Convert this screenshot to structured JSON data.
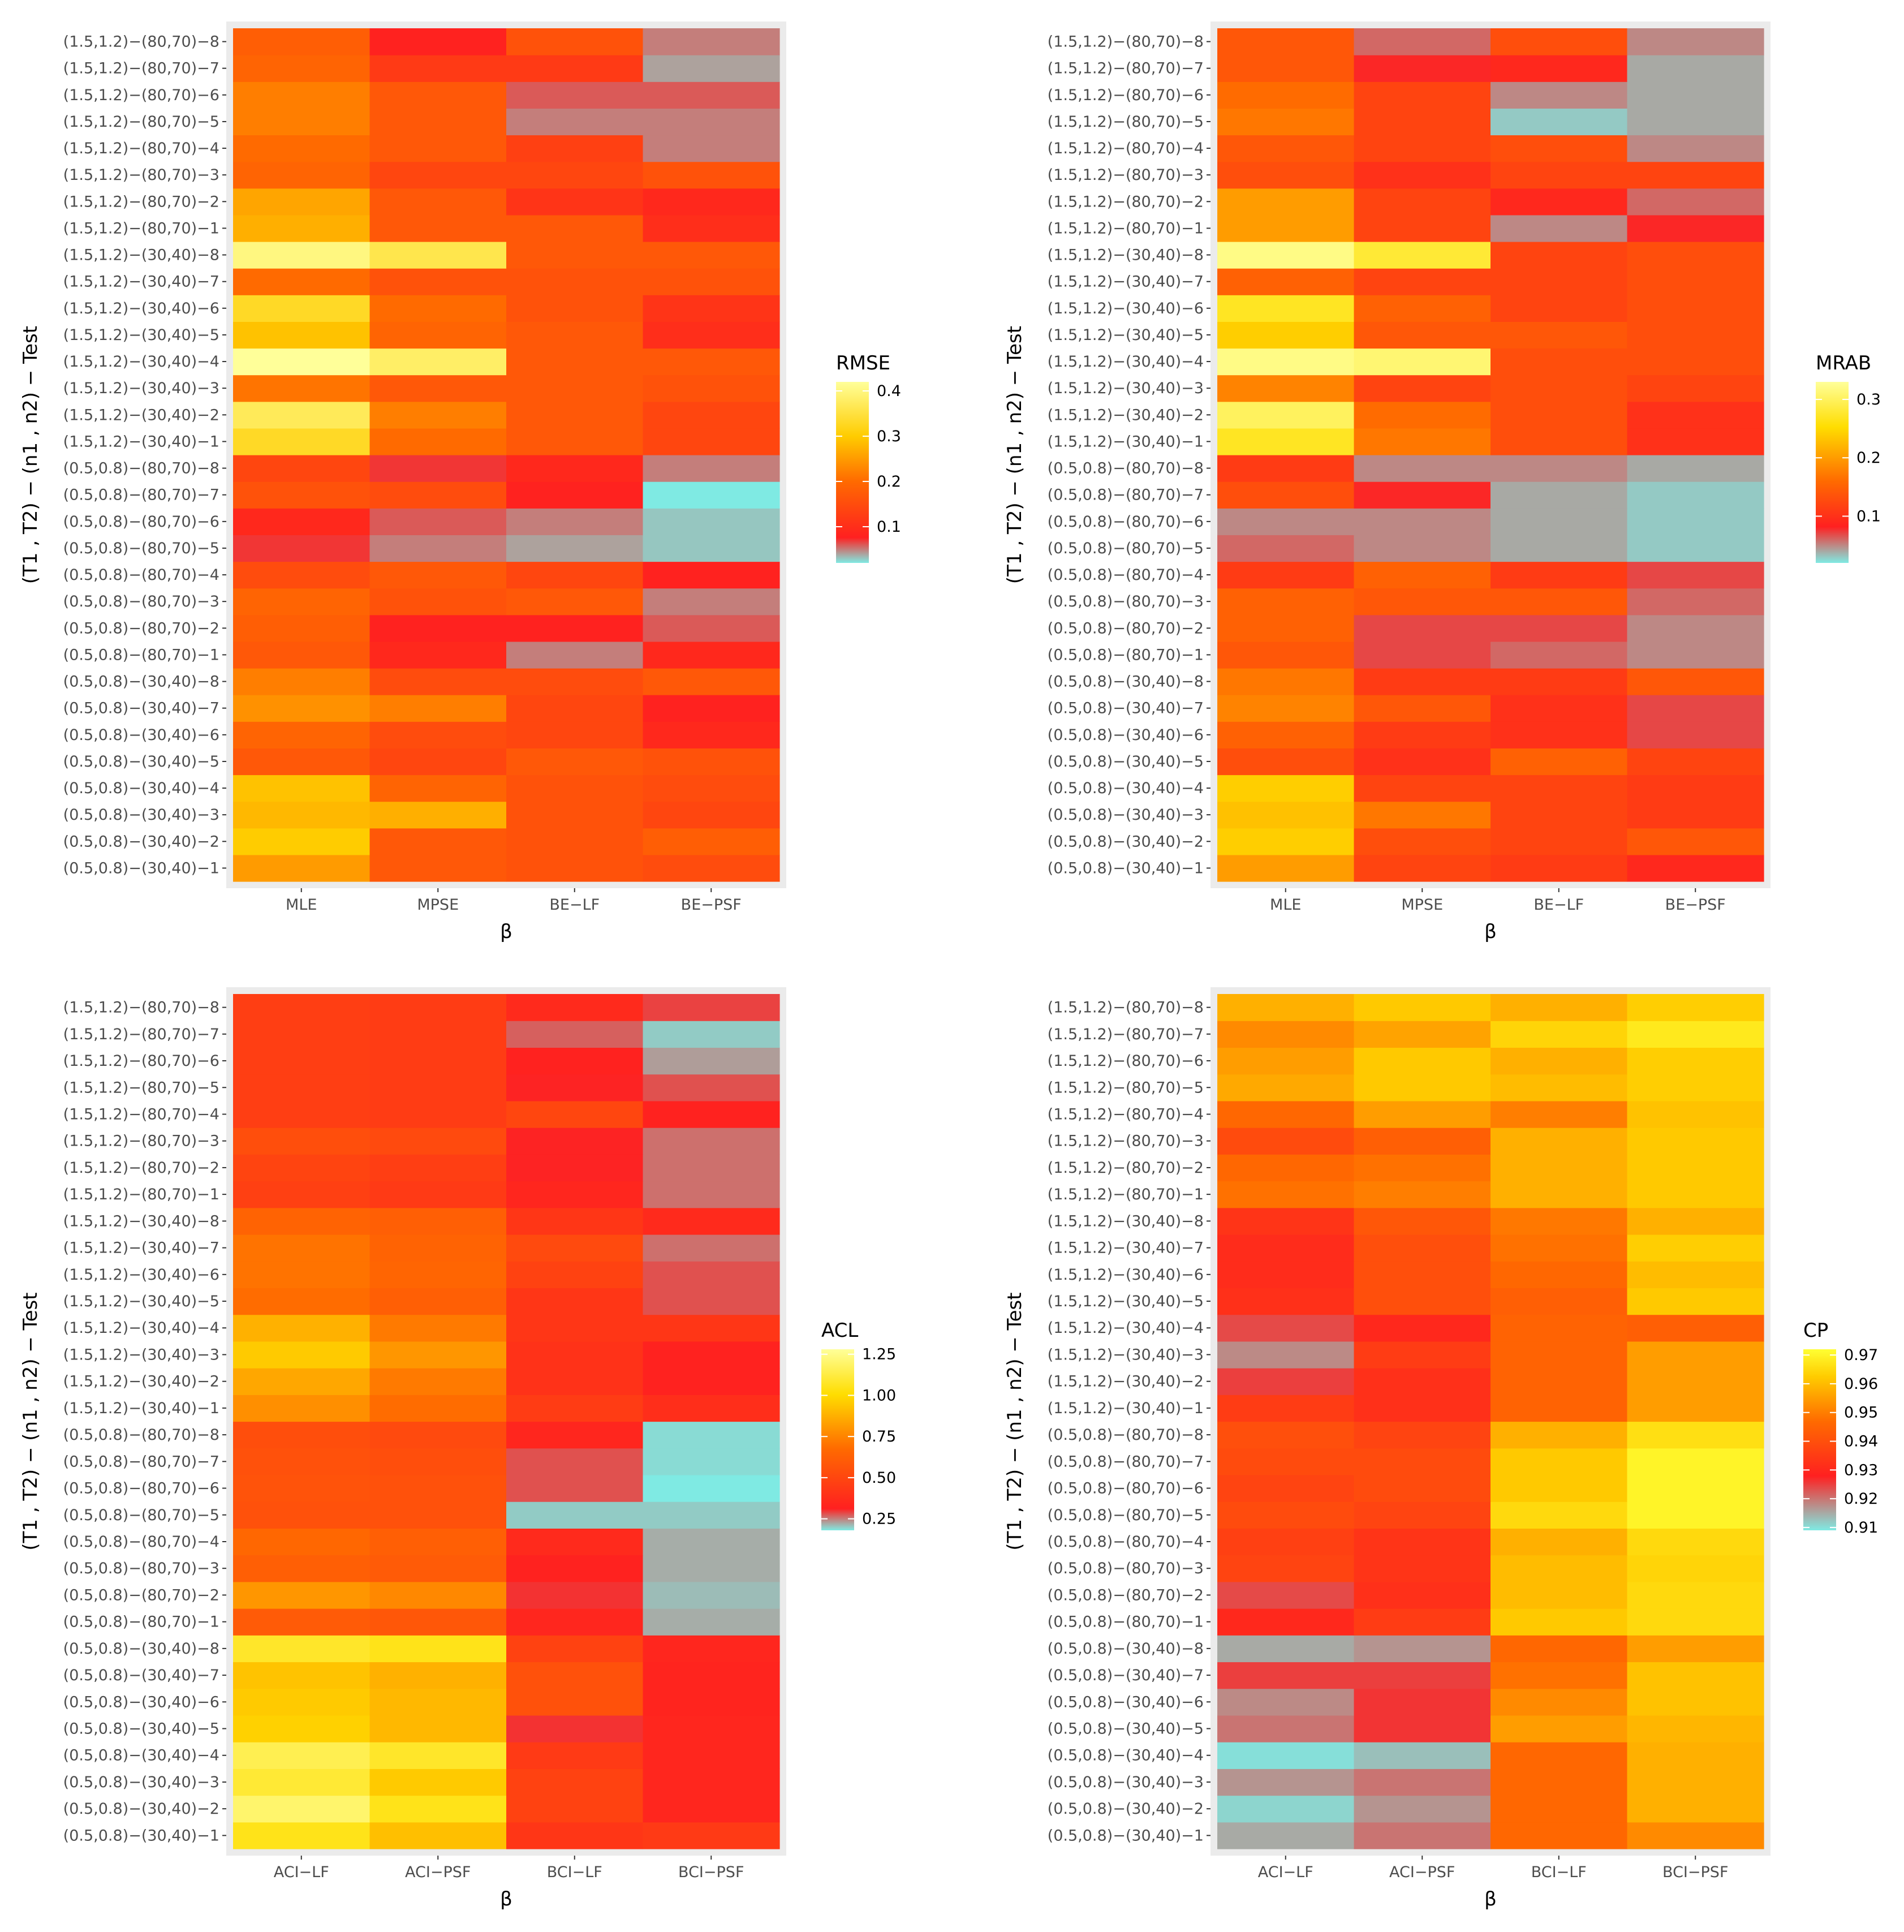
{
  "chart_data": [
    {
      "type": "heatmap",
      "xlabel": "β",
      "ylabel": "(T1 , T2) − (n1 , n2) − Test",
      "categories": [
        "MLE",
        "MPSE",
        "BE−LF",
        "BE−PSF"
      ],
      "rows": [
        "(0.5,0.8)−(30,40)−1",
        "(0.5,0.8)−(30,40)−2",
        "(0.5,0.8)−(30,40)−3",
        "(0.5,0.8)−(30,40)−4",
        "(0.5,0.8)−(30,40)−5",
        "(0.5,0.8)−(30,40)−6",
        "(0.5,0.8)−(30,40)−7",
        "(0.5,0.8)−(30,40)−8",
        "(0.5,0.8)−(80,70)−1",
        "(0.5,0.8)−(80,70)−2",
        "(0.5,0.8)−(80,70)−3",
        "(0.5,0.8)−(80,70)−4",
        "(0.5,0.8)−(80,70)−5",
        "(0.5,0.8)−(80,70)−6",
        "(0.5,0.8)−(80,70)−7",
        "(0.5,0.8)−(80,70)−8",
        "(1.5,1.2)−(30,40)−1",
        "(1.5,1.2)−(30,40)−2",
        "(1.5,1.2)−(30,40)−3",
        "(1.5,1.2)−(30,40)−4",
        "(1.5,1.2)−(30,40)−5",
        "(1.5,1.2)−(30,40)−6",
        "(1.5,1.2)−(30,40)−7",
        "(1.5,1.2)−(30,40)−8",
        "(1.5,1.2)−(80,70)−1",
        "(1.5,1.2)−(80,70)−2",
        "(1.5,1.2)−(80,70)−3",
        "(1.5,1.2)−(80,70)−4",
        "(1.5,1.2)−(80,70)−5",
        "(1.5,1.2)−(80,70)−6",
        "(1.5,1.2)−(80,70)−7",
        "(1.5,1.2)−(80,70)−8"
      ],
      "values": [
        [
          0.25,
          0.17,
          0.16,
          0.15
        ],
        [
          0.3,
          0.17,
          0.16,
          0.18
        ],
        [
          0.28,
          0.27,
          0.16,
          0.14
        ],
        [
          0.29,
          0.19,
          0.16,
          0.15
        ],
        [
          0.17,
          0.14,
          0.17,
          0.16
        ],
        [
          0.19,
          0.15,
          0.14,
          0.09
        ],
        [
          0.24,
          0.22,
          0.14,
          0.08
        ],
        [
          0.22,
          0.15,
          0.15,
          0.17
        ],
        [
          0.17,
          0.09,
          0.05,
          0.09
        ],
        [
          0.18,
          0.08,
          0.08,
          0.06
        ],
        [
          0.19,
          0.16,
          0.17,
          0.05
        ],
        [
          0.15,
          0.17,
          0.14,
          0.08
        ],
        [
          0.07,
          0.05,
          0.04,
          0.03
        ],
        [
          0.09,
          0.06,
          0.05,
          0.03
        ],
        [
          0.16,
          0.15,
          0.08,
          0.02
        ],
        [
          0.14,
          0.07,
          0.09,
          0.05
        ],
        [
          0.33,
          0.2,
          0.17,
          0.14
        ],
        [
          0.37,
          0.22,
          0.17,
          0.14
        ],
        [
          0.21,
          0.17,
          0.17,
          0.16
        ],
        [
          0.42,
          0.38,
          0.17,
          0.17
        ],
        [
          0.29,
          0.19,
          0.17,
          0.1
        ],
        [
          0.33,
          0.2,
          0.16,
          0.11
        ],
        [
          0.2,
          0.16,
          0.16,
          0.16
        ],
        [
          0.4,
          0.36,
          0.17,
          0.17
        ],
        [
          0.27,
          0.17,
          0.17,
          0.1
        ],
        [
          0.26,
          0.17,
          0.11,
          0.09
        ],
        [
          0.19,
          0.14,
          0.14,
          0.16
        ],
        [
          0.2,
          0.17,
          0.13,
          0.05
        ],
        [
          0.22,
          0.17,
          0.05,
          0.05
        ],
        [
          0.22,
          0.17,
          0.06,
          0.06
        ],
        [
          0.19,
          0.12,
          0.12,
          0.04
        ],
        [
          0.18,
          0.08,
          0.16,
          0.05
        ]
      ],
      "legend": {
        "title": "RMSE",
        "ticks": [
          0.1,
          0.2,
          0.3,
          0.4
        ],
        "min": 0.02,
        "max": 0.42,
        "palette": [
          [
            0.0,
            "#7feae3"
          ],
          [
            0.14,
            "#ff2020"
          ],
          [
            0.45,
            "#ff6a00"
          ],
          [
            0.7,
            "#ffcc00"
          ],
          [
            1.0,
            "#ffff99"
          ]
        ]
      }
    },
    {
      "type": "heatmap",
      "xlabel": "β",
      "ylabel": "(T1 , T2) − (n1 , n2) − Test",
      "categories": [
        "MLE",
        "MPSE",
        "BE−LF",
        "BE−PSF"
      ],
      "rows": [
        "(0.5,0.8)−(30,40)−1",
        "(0.5,0.8)−(30,40)−2",
        "(0.5,0.8)−(30,40)−3",
        "(0.5,0.8)−(30,40)−4",
        "(0.5,0.8)−(30,40)−5",
        "(0.5,0.8)−(30,40)−6",
        "(0.5,0.8)−(30,40)−7",
        "(0.5,0.8)−(30,40)−8",
        "(0.5,0.8)−(80,70)−1",
        "(0.5,0.8)−(80,70)−2",
        "(0.5,0.8)−(80,70)−3",
        "(0.5,0.8)−(80,70)−4",
        "(0.5,0.8)−(80,70)−5",
        "(0.5,0.8)−(80,70)−6",
        "(0.5,0.8)−(80,70)−7",
        "(0.5,0.8)−(80,70)−8",
        "(1.5,1.2)−(30,40)−1",
        "(1.5,1.2)−(30,40)−2",
        "(1.5,1.2)−(30,40)−3",
        "(1.5,1.2)−(30,40)−4",
        "(1.5,1.2)−(30,40)−5",
        "(1.5,1.2)−(30,40)−6",
        "(1.5,1.2)−(30,40)−7",
        "(1.5,1.2)−(30,40)−8",
        "(1.5,1.2)−(80,70)−1",
        "(1.5,1.2)−(80,70)−2",
        "(1.5,1.2)−(80,70)−3",
        "(1.5,1.2)−(80,70)−4",
        "(1.5,1.2)−(80,70)−5",
        "(1.5,1.2)−(80,70)−6",
        "(1.5,1.2)−(80,70)−7",
        "(1.5,1.2)−(80,70)−8"
      ],
      "values": [
        [
          0.2,
          0.12,
          0.11,
          0.09
        ],
        [
          0.24,
          0.13,
          0.12,
          0.14
        ],
        [
          0.23,
          0.17,
          0.12,
          0.11
        ],
        [
          0.24,
          0.12,
          0.12,
          0.11
        ],
        [
          0.13,
          0.1,
          0.15,
          0.12
        ],
        [
          0.15,
          0.11,
          0.1,
          0.07
        ],
        [
          0.18,
          0.14,
          0.1,
          0.07
        ],
        [
          0.17,
          0.11,
          0.11,
          0.14
        ],
        [
          0.14,
          0.07,
          0.06,
          0.05
        ],
        [
          0.15,
          0.07,
          0.07,
          0.05
        ],
        [
          0.15,
          0.14,
          0.14,
          0.06
        ],
        [
          0.11,
          0.15,
          0.11,
          0.07
        ],
        [
          0.06,
          0.05,
          0.04,
          0.03
        ],
        [
          0.05,
          0.05,
          0.04,
          0.03
        ],
        [
          0.13,
          0.08,
          0.04,
          0.03
        ],
        [
          0.11,
          0.05,
          0.05,
          0.04
        ],
        [
          0.27,
          0.17,
          0.13,
          0.1
        ],
        [
          0.3,
          0.16,
          0.13,
          0.1
        ],
        [
          0.18,
          0.12,
          0.13,
          0.12
        ],
        [
          0.32,
          0.31,
          0.13,
          0.13
        ],
        [
          0.24,
          0.14,
          0.14,
          0.13
        ],
        [
          0.27,
          0.15,
          0.12,
          0.13
        ],
        [
          0.15,
          0.12,
          0.12,
          0.13
        ],
        [
          0.32,
          0.28,
          0.12,
          0.13
        ],
        [
          0.2,
          0.12,
          0.05,
          0.08
        ],
        [
          0.2,
          0.12,
          0.09,
          0.06
        ],
        [
          0.13,
          0.1,
          0.12,
          0.12
        ],
        [
          0.14,
          0.12,
          0.13,
          0.05
        ],
        [
          0.17,
          0.12,
          0.03,
          0.04
        ],
        [
          0.16,
          0.12,
          0.05,
          0.04
        ],
        [
          0.14,
          0.08,
          0.09,
          0.04
        ],
        [
          0.14,
          0.06,
          0.13,
          0.05
        ]
      ],
      "legend": {
        "title": "MRAB",
        "ticks": [
          0.1,
          0.2,
          0.3
        ],
        "min": 0.02,
        "max": 0.33,
        "palette": [
          [
            0.0,
            "#7feae3"
          ],
          [
            0.2,
            "#ff2020"
          ],
          [
            0.45,
            "#ff6a00"
          ],
          [
            0.75,
            "#ffdd00"
          ],
          [
            1.0,
            "#ffff99"
          ]
        ]
      }
    },
    {
      "type": "heatmap",
      "xlabel": "β",
      "ylabel": "(T1 , T2) − (n1 , n2) − Test",
      "categories": [
        "ACI−LF",
        "ACI−PSF",
        "BCI−LF",
        "BCI−PSF"
      ],
      "rows": [
        "(0.5,0.8)−(30,40)−1",
        "(0.5,0.8)−(30,40)−2",
        "(0.5,0.8)−(30,40)−3",
        "(0.5,0.8)−(30,40)−4",
        "(0.5,0.8)−(30,40)−5",
        "(0.5,0.8)−(30,40)−6",
        "(0.5,0.8)−(30,40)−7",
        "(0.5,0.8)−(30,40)−8",
        "(0.5,0.8)−(80,70)−1",
        "(0.5,0.8)−(80,70)−2",
        "(0.5,0.8)−(80,70)−3",
        "(0.5,0.8)−(80,70)−4",
        "(0.5,0.8)−(80,70)−5",
        "(0.5,0.8)−(80,70)−6",
        "(0.5,0.8)−(80,70)−7",
        "(0.5,0.8)−(80,70)−8",
        "(1.5,1.2)−(30,40)−1",
        "(1.5,1.2)−(30,40)−2",
        "(1.5,1.2)−(30,40)−3",
        "(1.5,1.2)−(30,40)−4",
        "(1.5,1.2)−(30,40)−5",
        "(1.5,1.2)−(30,40)−6",
        "(1.5,1.2)−(30,40)−7",
        "(1.5,1.2)−(30,40)−8",
        "(1.5,1.2)−(80,70)−1",
        "(1.5,1.2)−(80,70)−2",
        "(1.5,1.2)−(80,70)−3",
        "(1.5,1.2)−(80,70)−4",
        "(1.5,1.2)−(80,70)−5",
        "(1.5,1.2)−(80,70)−6",
        "(1.5,1.2)−(80,70)−7",
        "(1.5,1.2)−(80,70)−8"
      ],
      "values": [
        [
          1.05,
          0.92,
          0.42,
          0.44
        ],
        [
          1.2,
          1.05,
          0.48,
          0.34
        ],
        [
          1.1,
          0.95,
          0.48,
          0.34
        ],
        [
          1.15,
          1.08,
          0.44,
          0.34
        ],
        [
          0.97,
          0.9,
          0.3,
          0.34
        ],
        [
          0.95,
          0.9,
          0.55,
          0.33
        ],
        [
          0.93,
          0.88,
          0.55,
          0.33
        ],
        [
          1.08,
          1.05,
          0.48,
          0.34
        ],
        [
          0.6,
          0.58,
          0.34,
          0.22
        ],
        [
          0.8,
          0.76,
          0.3,
          0.21
        ],
        [
          0.62,
          0.6,
          0.32,
          0.22
        ],
        [
          0.66,
          0.62,
          0.36,
          0.22
        ],
        [
          0.55,
          0.55,
          0.2,
          0.2
        ],
        [
          0.56,
          0.55,
          0.28,
          0.18
        ],
        [
          0.55,
          0.54,
          0.28,
          0.19
        ],
        [
          0.54,
          0.52,
          0.34,
          0.19
        ],
        [
          0.78,
          0.68,
          0.45,
          0.38
        ],
        [
          0.85,
          0.72,
          0.4,
          0.32
        ],
        [
          0.95,
          0.8,
          0.4,
          0.32
        ],
        [
          0.88,
          0.72,
          0.42,
          0.42
        ],
        [
          0.68,
          0.62,
          0.42,
          0.28
        ],
        [
          0.7,
          0.65,
          0.48,
          0.28
        ],
        [
          0.7,
          0.64,
          0.52,
          0.26
        ],
        [
          0.64,
          0.62,
          0.42,
          0.36
        ],
        [
          0.47,
          0.44,
          0.34,
          0.26
        ],
        [
          0.49,
          0.46,
          0.31,
          0.26
        ],
        [
          0.54,
          0.52,
          0.31,
          0.26
        ],
        [
          0.46,
          0.45,
          0.5,
          0.32
        ],
        [
          0.46,
          0.45,
          0.31,
          0.28
        ],
        [
          0.46,
          0.45,
          0.32,
          0.23
        ],
        [
          0.46,
          0.45,
          0.27,
          0.2
        ],
        [
          0.46,
          0.45,
          0.36,
          0.29
        ]
      ],
      "legend": {
        "title": "ACL",
        "ticks": [
          0.25,
          0.5,
          0.75,
          1.0,
          1.25
        ],
        "min": 0.18,
        "max": 1.28,
        "palette": [
          [
            0.0,
            "#7feae3"
          ],
          [
            0.12,
            "#ff2020"
          ],
          [
            0.45,
            "#ff6a00"
          ],
          [
            0.75,
            "#ffdd00"
          ],
          [
            1.0,
            "#ffff99"
          ]
        ]
      }
    },
    {
      "type": "heatmap",
      "xlabel": "β",
      "ylabel": "(T1 , T2) − (n1 , n2) − Test",
      "categories": [
        "ACI−LF",
        "ACI−PSF",
        "BCI−LF",
        "BCI−PSF"
      ],
      "rows": [
        "(0.5,0.8)−(30,40)−1",
        "(0.5,0.8)−(30,40)−2",
        "(0.5,0.8)−(30,40)−3",
        "(0.5,0.8)−(30,40)−4",
        "(0.5,0.8)−(30,40)−5",
        "(0.5,0.8)−(30,40)−6",
        "(0.5,0.8)−(30,40)−7",
        "(0.5,0.8)−(30,40)−8",
        "(0.5,0.8)−(80,70)−1",
        "(0.5,0.8)−(80,70)−2",
        "(0.5,0.8)−(80,70)−3",
        "(0.5,0.8)−(80,70)−4",
        "(0.5,0.8)−(80,70)−5",
        "(0.5,0.8)−(80,70)−6",
        "(0.5,0.8)−(80,70)−7",
        "(0.5,0.8)−(80,70)−8",
        "(1.5,1.2)−(30,40)−1",
        "(1.5,1.2)−(30,40)−2",
        "(1.5,1.2)−(30,40)−3",
        "(1.5,1.2)−(30,40)−4",
        "(1.5,1.2)−(30,40)−5",
        "(1.5,1.2)−(30,40)−6",
        "(1.5,1.2)−(30,40)−7",
        "(1.5,1.2)−(30,40)−8",
        "(1.5,1.2)−(80,70)−1",
        "(1.5,1.2)−(80,70)−2",
        "(1.5,1.2)−(80,70)−3",
        "(1.5,1.2)−(80,70)−4",
        "(1.5,1.2)−(80,70)−5",
        "(1.5,1.2)−(80,70)−6",
        "(1.5,1.2)−(80,70)−7",
        "(1.5,1.2)−(80,70)−8"
      ],
      "values": [
        [
          0.915,
          0.92,
          0.946,
          0.952
        ],
        [
          0.911,
          0.917,
          0.946,
          0.958
        ],
        [
          0.917,
          0.92,
          0.946,
          0.958
        ],
        [
          0.91,
          0.913,
          0.946,
          0.958
        ],
        [
          0.92,
          0.926,
          0.955,
          0.959
        ],
        [
          0.918,
          0.926,
          0.952,
          0.961
        ],
        [
          0.925,
          0.925,
          0.948,
          0.961
        ],
        [
          0.915,
          0.917,
          0.946,
          0.955
        ],
        [
          0.93,
          0.935,
          0.962,
          0.965
        ],
        [
          0.924,
          0.932,
          0.96,
          0.965
        ],
        [
          0.937,
          0.933,
          0.96,
          0.964
        ],
        [
          0.936,
          0.933,
          0.958,
          0.965
        ],
        [
          0.939,
          0.937,
          0.965,
          0.97
        ],
        [
          0.937,
          0.939,
          0.962,
          0.97
        ],
        [
          0.939,
          0.939,
          0.962,
          0.97
        ],
        [
          0.94,
          0.937,
          0.958,
          0.966
        ],
        [
          0.935,
          0.932,
          0.945,
          0.955
        ],
        [
          0.925,
          0.932,
          0.945,
          0.955
        ],
        [
          0.918,
          0.935,
          0.945,
          0.955
        ],
        [
          0.924,
          0.93,
          0.945,
          0.944
        ],
        [
          0.932,
          0.94,
          0.944,
          0.962
        ],
        [
          0.931,
          0.94,
          0.946,
          0.96
        ],
        [
          0.931,
          0.94,
          0.948,
          0.963
        ],
        [
          0.933,
          0.942,
          0.949,
          0.958
        ],
        [
          0.948,
          0.95,
          0.958,
          0.962
        ],
        [
          0.946,
          0.948,
          0.958,
          0.962
        ],
        [
          0.939,
          0.944,
          0.958,
          0.962
        ],
        [
          0.946,
          0.955,
          0.95,
          0.961
        ],
        [
          0.957,
          0.962,
          0.96,
          0.963
        ],
        [
          0.955,
          0.962,
          0.958,
          0.963
        ],
        [
          0.952,
          0.956,
          0.964,
          0.968
        ],
        [
          0.958,
          0.962,
          0.958,
          0.963
        ]
      ],
      "legend": {
        "title": "CP",
        "ticks": [
          0.91,
          0.92,
          0.93,
          0.94,
          0.95,
          0.96,
          0.97
        ],
        "min": 0.909,
        "max": 0.972,
        "palette": [
          [
            0.0,
            "#7feae3"
          ],
          [
            0.3,
            "#ff2020"
          ],
          [
            0.6,
            "#ff6a00"
          ],
          [
            0.85,
            "#ffcc00"
          ],
          [
            1.0,
            "#ffff33"
          ]
        ]
      }
    }
  ]
}
